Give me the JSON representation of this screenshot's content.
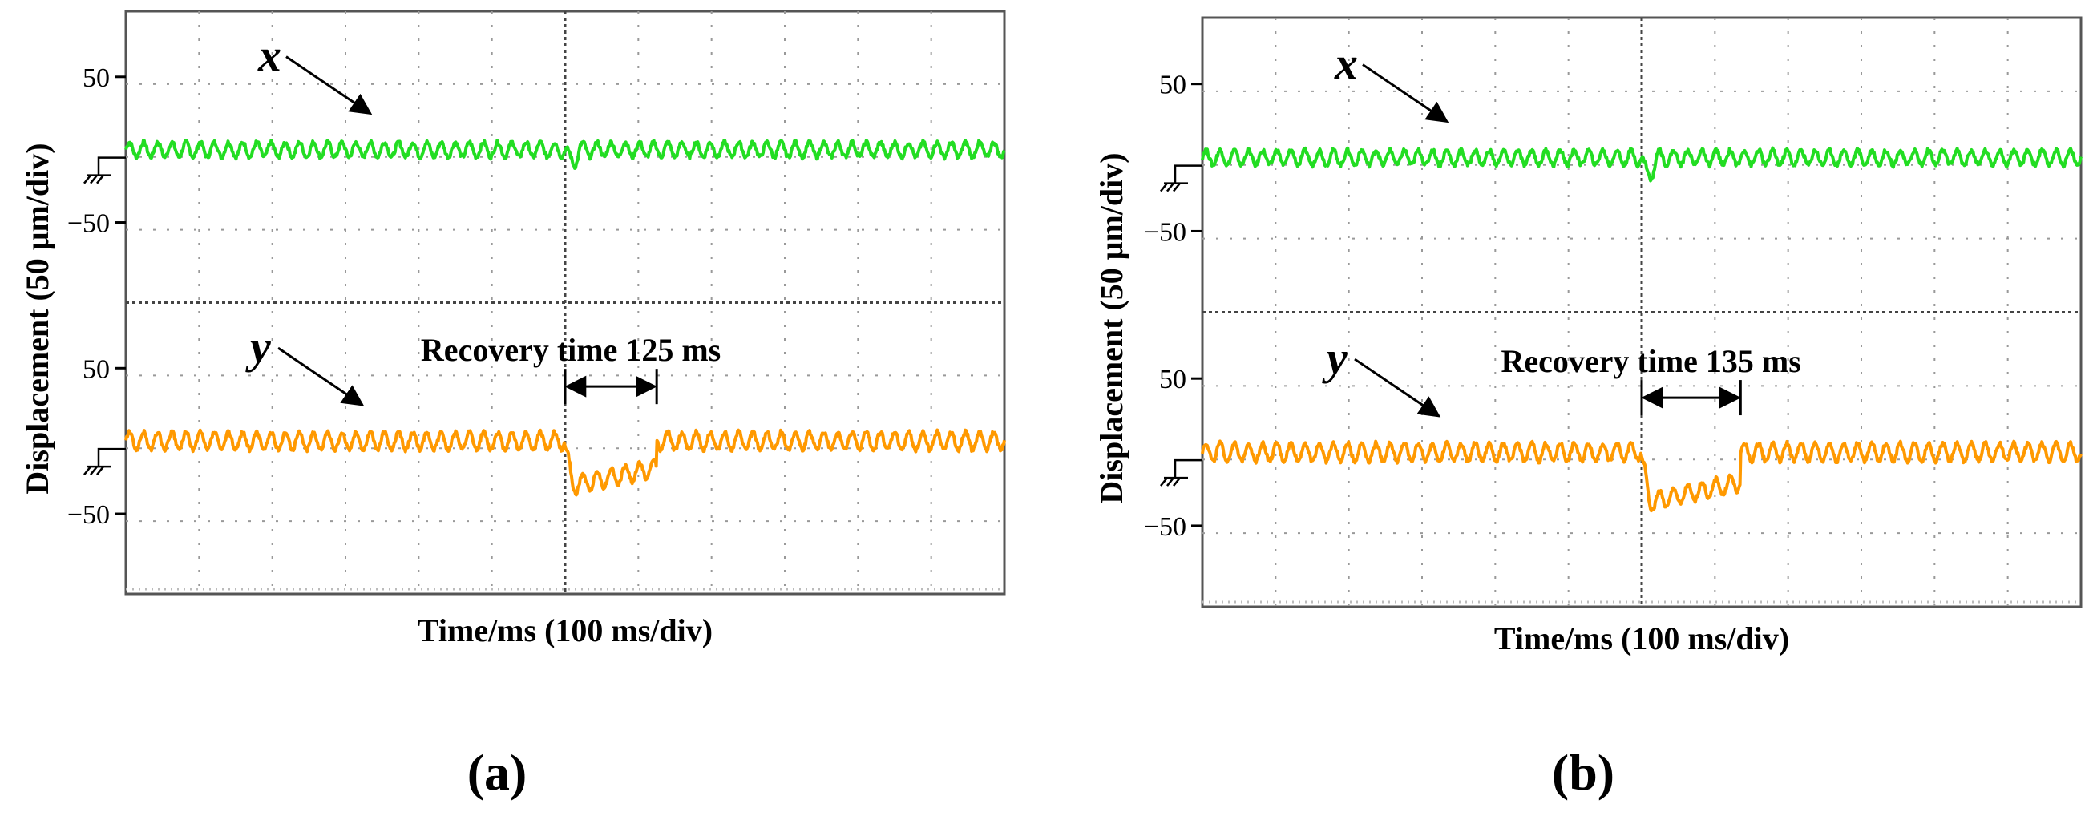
{
  "chart_data": [
    {
      "type": "line",
      "panel_label": "(a)",
      "xlabel": "Time/ms (100 ms/div)",
      "ylabel": "Displacement (50 μm/div)",
      "x_unit_per_div": 100,
      "y_unit_per_div": 50,
      "xlim": [
        0,
        1200
      ],
      "top_trace_ylim": [
        -100,
        100
      ],
      "bottom_trace_ylim": [
        -100,
        100
      ],
      "top_trace_ticks": [
        "50",
        "−50"
      ],
      "bottom_trace_ticks": [
        "50",
        "−50"
      ],
      "series": [
        {
          "name": "x",
          "color": "#22dd22",
          "baseline": 0,
          "ripple_amplitude": 5,
          "disturbance_at_ms": 600,
          "disturbance_min": -10
        },
        {
          "name": "y",
          "color": "#ff9900",
          "baseline": 0,
          "ripple_amplitude": 6,
          "disturbance_at_ms": 600,
          "disturbance_min": -35,
          "recovery_end_ms": 725
        }
      ],
      "annotations": {
        "x_label": "x",
        "y_label": "y",
        "recovery_text": "Recovery time 125 ms",
        "recovery_start_ms": 600,
        "recovery_end_ms": 725
      }
    },
    {
      "type": "line",
      "panel_label": "(b)",
      "xlabel": "Time/ms (100 ms/div)",
      "ylabel": "Displacement (50 μm/div)",
      "x_unit_per_div": 100,
      "y_unit_per_div": 50,
      "xlim": [
        0,
        1200
      ],
      "top_trace_ylim": [
        -100,
        100
      ],
      "bottom_trace_ylim": [
        -100,
        100
      ],
      "top_trace_ticks": [
        "50",
        "−50"
      ],
      "bottom_trace_ticks": [
        "50",
        "−50"
      ],
      "series": [
        {
          "name": "x",
          "color": "#22dd22",
          "baseline": 0,
          "ripple_amplitude": 5,
          "disturbance_at_ms": 600,
          "disturbance_min": -15
        },
        {
          "name": "y",
          "color": "#ff9900",
          "baseline": 0,
          "ripple_amplitude": 6,
          "disturbance_at_ms": 600,
          "disturbance_min": -40,
          "recovery_end_ms": 735
        }
      ],
      "annotations": {
        "x_label": "x",
        "y_label": "y",
        "recovery_text": "Recovery time 135 ms",
        "recovery_start_ms": 600,
        "recovery_end_ms": 735
      }
    }
  ]
}
